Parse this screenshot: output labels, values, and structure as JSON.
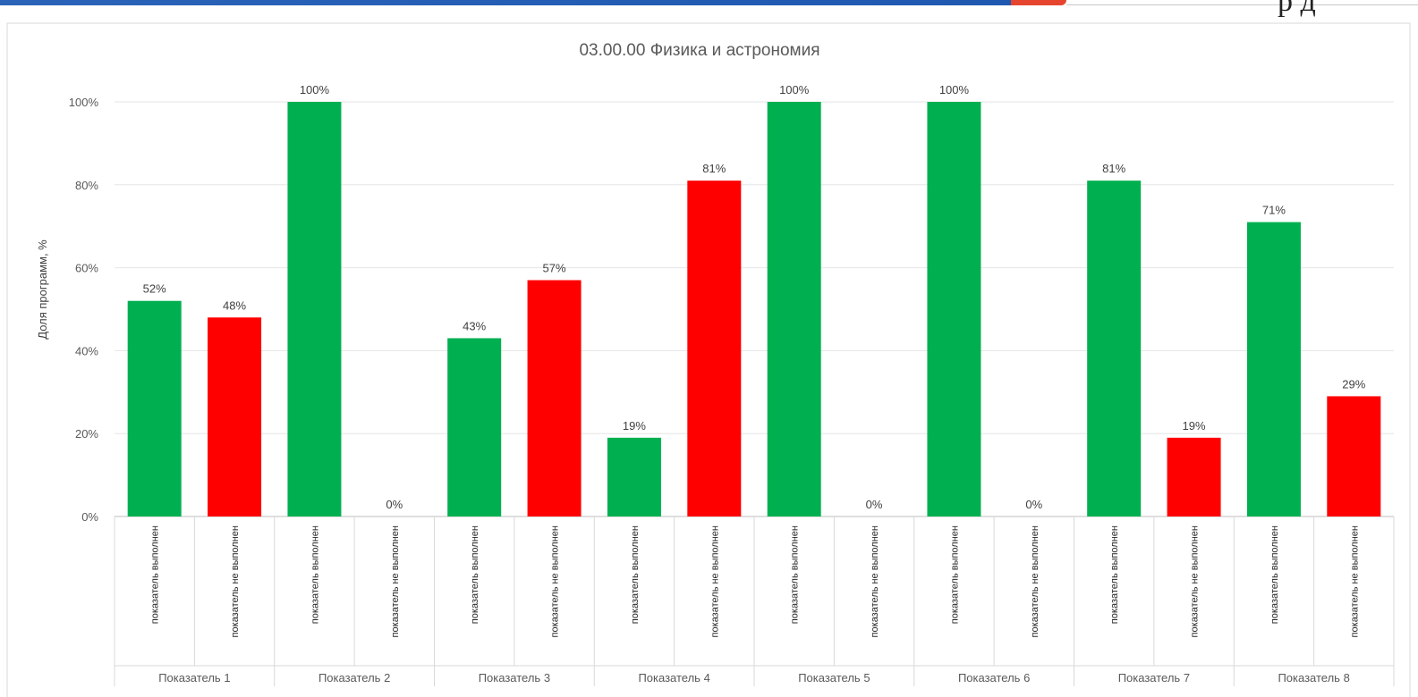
{
  "header": {
    "corner_text": "р д"
  },
  "chart_data": {
    "type": "bar",
    "title": "03.00.00 Физика и астрономия",
    "xlabel": "",
    "ylabel": "Доля программ, %",
    "ylim": [
      0,
      100
    ],
    "yticks": [
      "0%",
      "20%",
      "40%",
      "60%",
      "80%",
      "100%"
    ],
    "grid": true,
    "legend": "none",
    "groups": [
      "Показатель 1",
      "Показатель 2",
      "Показатель 3",
      "Показатель 4",
      "Показатель 5",
      "Показатель 6",
      "Показатель 7",
      "Показатель 8"
    ],
    "subcategories": [
      "показатель выполнен",
      "показатель не выполнен"
    ],
    "series": [
      {
        "values": [
          52,
          100,
          43,
          19,
          100,
          100,
          81,
          71
        ],
        "labels": [
          "52%",
          "100%",
          "43%",
          "19%",
          "100%",
          "100%",
          "81%",
          "71%"
        ],
        "color": "#00b050"
      },
      {
        "values": [
          48,
          0,
          57,
          81,
          0,
          0,
          19,
          29
        ],
        "labels": [
          "48%",
          "0%",
          "57%",
          "81%",
          "0%",
          "0%",
          "19%",
          "29%"
        ],
        "color": "#ff0000"
      }
    ]
  }
}
